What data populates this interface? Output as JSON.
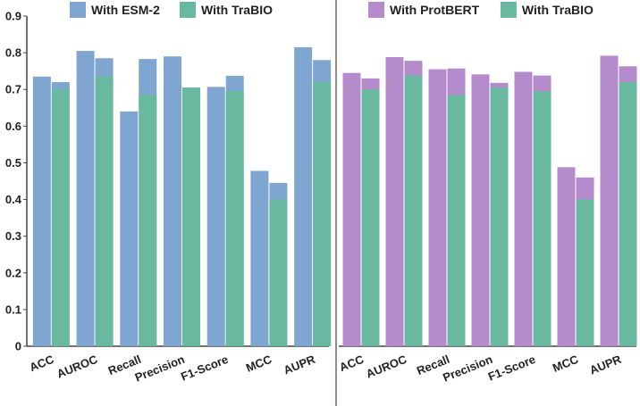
{
  "chart_data": {
    "type": "bar",
    "ylim": [
      0,
      0.9
    ],
    "yticks": [
      "0",
      "0.1",
      "0.2",
      "0.3",
      "0.4",
      "0.5",
      "0.6",
      "0.7",
      "0.8",
      "0.9"
    ],
    "categories": [
      "ACC",
      "AUROC",
      "Recall",
      "Precision",
      "F1-Score",
      "MCC",
      "AUPR"
    ],
    "panels": [
      {
        "baseline": {
          "name": "With ESM-2",
          "color": "#7FA6D0"
        },
        "trabio": {
          "name": "With TraBIO",
          "color": "#69B9A0"
        },
        "pairs": [
          {
            "baseline": 0.735,
            "combined": 0.72,
            "trabio_part": 0.7
          },
          {
            "baseline": 0.805,
            "combined": 0.785,
            "trabio_part": 0.735
          },
          {
            "baseline": 0.64,
            "combined": 0.783,
            "trabio_part": 0.685
          },
          {
            "baseline": 0.79,
            "combined": 0.705,
            "trabio_part": 0.705
          },
          {
            "baseline": 0.707,
            "combined": 0.737,
            "trabio_part": 0.695
          },
          {
            "baseline": 0.478,
            "combined": 0.445,
            "trabio_part": 0.4
          },
          {
            "baseline": 0.815,
            "combined": 0.78,
            "trabio_part": 0.72
          }
        ]
      },
      {
        "baseline": {
          "name": "With ProtBERT",
          "color": "#B48BCB"
        },
        "trabio": {
          "name": "With TraBIO",
          "color": "#69B9A0"
        },
        "pairs": [
          {
            "baseline": 0.745,
            "combined": 0.73,
            "trabio_part": 0.7
          },
          {
            "baseline": 0.788,
            "combined": 0.778,
            "trabio_part": 0.738
          },
          {
            "baseline": 0.755,
            "combined": 0.757,
            "trabio_part": 0.685
          },
          {
            "baseline": 0.741,
            "combined": 0.718,
            "trabio_part": 0.705
          },
          {
            "baseline": 0.748,
            "combined": 0.738,
            "trabio_part": 0.695
          },
          {
            "baseline": 0.488,
            "combined": 0.46,
            "trabio_part": 0.4
          },
          {
            "baseline": 0.792,
            "combined": 0.763,
            "trabio_part": 0.72
          }
        ]
      }
    ]
  }
}
